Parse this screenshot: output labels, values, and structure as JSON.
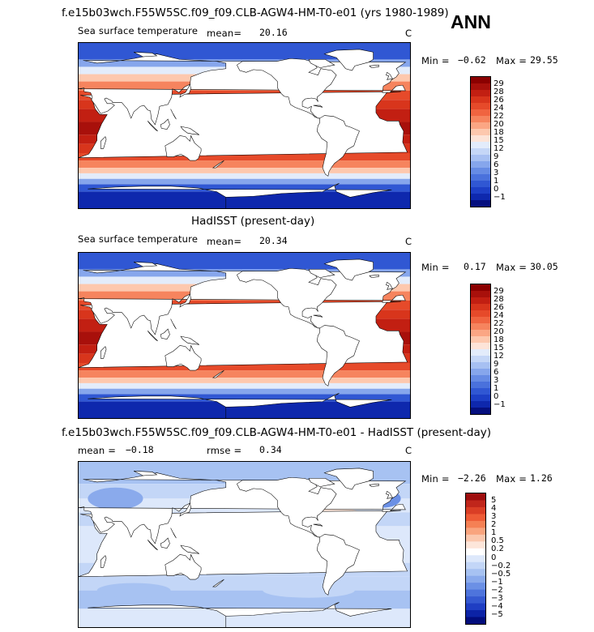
{
  "panels": [
    {
      "title": "f.e15b03wch.F55W5SC.f09_f09.CLB-AGW4-HM-T0-e01 (yrs 1980-1989)",
      "variable": "Sea surface temperature",
      "stat1_label": "mean=",
      "stat1_value": "20.16",
      "units": "C",
      "min_label": "Min =",
      "min_value": "−0.62",
      "max_label": "Max =",
      "max_value": "29.55",
      "colorbar_labels": [
        "29",
        "28",
        "26",
        "24",
        "22",
        "20",
        "18",
        "15",
        "12",
        "9",
        "6",
        "3",
        "1",
        "0",
        "−1"
      ]
    },
    {
      "title": "HadISST (present-day)",
      "variable": "Sea surface temperature",
      "stat1_label": "mean=",
      "stat1_value": "20.34",
      "units": "C",
      "min_label": "Min =",
      "min_value": "0.17",
      "max_label": "Max =",
      "max_value": "30.05",
      "colorbar_labels": [
        "29",
        "28",
        "26",
        "24",
        "22",
        "20",
        "18",
        "15",
        "12",
        "9",
        "6",
        "3",
        "1",
        "0",
        "−1"
      ]
    },
    {
      "title": "f.e15b03wch.F55W5SC.f09_f09.CLB-AGW4-HM-T0-e01 - HadISST (present-day)",
      "variable": "",
      "stat1_label": "mean =",
      "stat1_value": "−0.18",
      "stat2_label": "rmse =",
      "stat2_value": "0.34",
      "units": "C",
      "min_label": "Min =",
      "min_value": "−2.26",
      "max_label": "Max =",
      "max_value": "1.26",
      "colorbar_labels": [
        "5",
        "4",
        "3",
        "2",
        "1",
        "0.5",
        "0.2",
        "0",
        "−0.2",
        "−0.5",
        "−1",
        "−2",
        "−3",
        "−4",
        "−5"
      ]
    }
  ],
  "season": "ANN",
  "colors": {
    "sst_palette": [
      "#8b0000",
      "#a8100b",
      "#c21f12",
      "#d8351c",
      "#e64a2a",
      "#f06440",
      "#f6845e",
      "#fba684",
      "#fdc8ae",
      "#fde4d8",
      "#e3ecfb",
      "#c5d7f7",
      "#a7c0f2",
      "#86a6ec",
      "#668be4",
      "#4a71dc",
      "#3057d3",
      "#1d3fc6",
      "#0e28ad",
      "#050f7e"
    ],
    "diff_palette": [
      "#9e0d0d",
      "#c0261b",
      "#da3e25",
      "#ee5b36",
      "#f58054",
      "#f9a47e",
      "#fbc8ae",
      "#fde6da",
      "#ffffff",
      "#dde8fb",
      "#c3d6f7",
      "#a7c2f2",
      "#8aaaec",
      "#6b90e5",
      "#4e74dc",
      "#3559d1",
      "#1f3ec3",
      "#0c23a6",
      "#020d7c"
    ],
    "land": "#ffffff"
  }
}
